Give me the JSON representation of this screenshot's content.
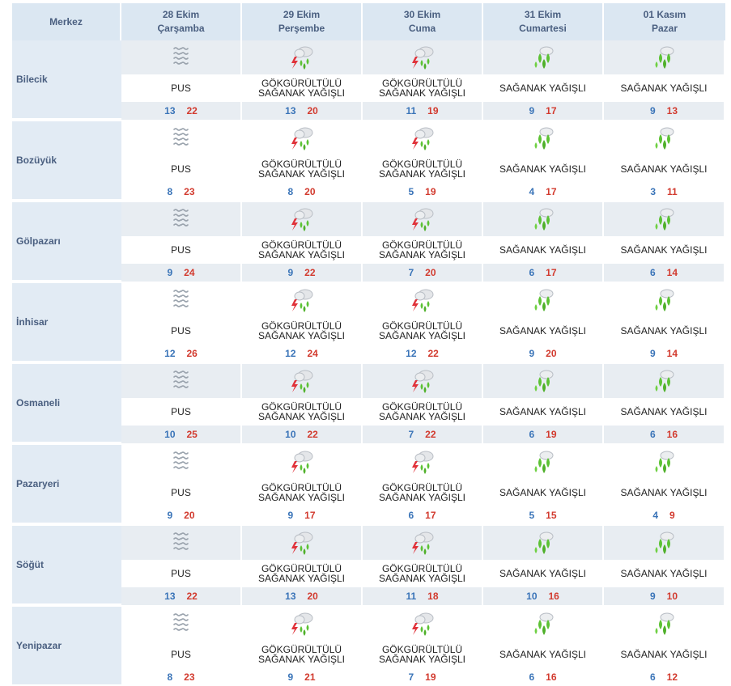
{
  "header": {
    "merkez": "Merkez",
    "days": [
      {
        "date": "28 Ekim",
        "weekday": "Çarşamba"
      },
      {
        "date": "29 Ekim",
        "weekday": "Perşembe"
      },
      {
        "date": "30 Ekim",
        "weekday": "Cuma"
      },
      {
        "date": "31 Ekim",
        "weekday": "Cumartesi"
      },
      {
        "date": "01 Kasım",
        "weekday": "Pazar"
      }
    ]
  },
  "conditions": {
    "fog": {
      "icon": "fog-icon",
      "line1": "PUS",
      "line2": ""
    },
    "thunder": {
      "icon": "thunder-shower-icon",
      "line1": "GÖKGÜRÜLTÜLÜ",
      "line2": "SAĞANAK YAĞIŞLI"
    },
    "shower": {
      "icon": "shower-icon",
      "line1": "SAĞANAK YAĞIŞLI",
      "line2": ""
    }
  },
  "cities": [
    {
      "name": "Bilecik",
      "days": [
        {
          "cond": "fog",
          "lo": "13",
          "hi": "22"
        },
        {
          "cond": "thunder",
          "lo": "13",
          "hi": "20"
        },
        {
          "cond": "thunder",
          "lo": "11",
          "hi": "19"
        },
        {
          "cond": "shower",
          "lo": "9",
          "hi": "17"
        },
        {
          "cond": "shower",
          "lo": "9",
          "hi": "13"
        }
      ]
    },
    {
      "name": "Bozüyük",
      "days": [
        {
          "cond": "fog",
          "lo": "8",
          "hi": "23"
        },
        {
          "cond": "thunder",
          "lo": "8",
          "hi": "20"
        },
        {
          "cond": "thunder",
          "lo": "5",
          "hi": "19"
        },
        {
          "cond": "shower",
          "lo": "4",
          "hi": "17"
        },
        {
          "cond": "shower",
          "lo": "3",
          "hi": "11"
        }
      ]
    },
    {
      "name": "Gölpazarı",
      "days": [
        {
          "cond": "fog",
          "lo": "9",
          "hi": "24"
        },
        {
          "cond": "thunder",
          "lo": "9",
          "hi": "22"
        },
        {
          "cond": "thunder",
          "lo": "7",
          "hi": "20"
        },
        {
          "cond": "shower",
          "lo": "6",
          "hi": "17"
        },
        {
          "cond": "shower",
          "lo": "6",
          "hi": "14"
        }
      ]
    },
    {
      "name": "İnhisar",
      "days": [
        {
          "cond": "fog",
          "lo": "12",
          "hi": "26"
        },
        {
          "cond": "thunder",
          "lo": "12",
          "hi": "24"
        },
        {
          "cond": "thunder",
          "lo": "12",
          "hi": "22"
        },
        {
          "cond": "shower",
          "lo": "9",
          "hi": "20"
        },
        {
          "cond": "shower",
          "lo": "9",
          "hi": "14"
        }
      ]
    },
    {
      "name": "Osmaneli",
      "days": [
        {
          "cond": "fog",
          "lo": "10",
          "hi": "25"
        },
        {
          "cond": "thunder",
          "lo": "10",
          "hi": "22"
        },
        {
          "cond": "thunder",
          "lo": "7",
          "hi": "22"
        },
        {
          "cond": "shower",
          "lo": "6",
          "hi": "19"
        },
        {
          "cond": "shower",
          "lo": "6",
          "hi": "16"
        }
      ]
    },
    {
      "name": "Pazaryeri",
      "days": [
        {
          "cond": "fog",
          "lo": "9",
          "hi": "20"
        },
        {
          "cond": "thunder",
          "lo": "9",
          "hi": "17"
        },
        {
          "cond": "thunder",
          "lo": "6",
          "hi": "17"
        },
        {
          "cond": "shower",
          "lo": "5",
          "hi": "15"
        },
        {
          "cond": "shower",
          "lo": "4",
          "hi": "9"
        }
      ]
    },
    {
      "name": "Söğüt",
      "days": [
        {
          "cond": "fog",
          "lo": "13",
          "hi": "22"
        },
        {
          "cond": "thunder",
          "lo": "13",
          "hi": "20"
        },
        {
          "cond": "thunder",
          "lo": "11",
          "hi": "18"
        },
        {
          "cond": "shower",
          "lo": "10",
          "hi": "16"
        },
        {
          "cond": "shower",
          "lo": "9",
          "hi": "10"
        }
      ]
    },
    {
      "name": "Yenipazar",
      "days": [
        {
          "cond": "fog",
          "lo": "8",
          "hi": "23"
        },
        {
          "cond": "thunder",
          "lo": "9",
          "hi": "21"
        },
        {
          "cond": "thunder",
          "lo": "7",
          "hi": "19"
        },
        {
          "cond": "shower",
          "lo": "6",
          "hi": "16"
        },
        {
          "cond": "shower",
          "lo": "6",
          "hi": "12"
        }
      ]
    }
  ],
  "colors": {
    "low": "#3a74b8",
    "high": "#d23a2e",
    "header": "#4a5f80",
    "rain": "#5cc234",
    "bolt": "#e0323a"
  }
}
